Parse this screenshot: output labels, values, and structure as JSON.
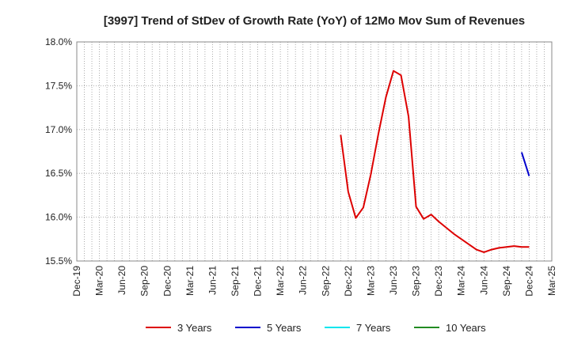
{
  "chart_data": {
    "type": "line",
    "title": "[3997]  Trend of StDev of Growth Rate (YoY) of 12Mo Mov Sum of Revenues",
    "xlabel": "",
    "ylabel": "",
    "x_ticks": [
      "Dec-19",
      "Mar-20",
      "Jun-20",
      "Sep-20",
      "Dec-20",
      "Mar-21",
      "Jun-21",
      "Sep-21",
      "Dec-21",
      "Mar-22",
      "Jun-22",
      "Sep-22",
      "Dec-22",
      "Mar-23",
      "Jun-23",
      "Sep-23",
      "Dec-23",
      "Mar-24",
      "Jun-24",
      "Sep-24",
      "Dec-24",
      "Mar-25"
    ],
    "y_ticks": [
      "15.5%",
      "16.0%",
      "16.5%",
      "17.0%",
      "17.5%",
      "18.0%"
    ],
    "y_tick_values": [
      15.5,
      16.0,
      16.5,
      17.0,
      17.5,
      18.0
    ],
    "ylim": [
      15.5,
      18.0
    ],
    "x_months_range": [
      0,
      63
    ],
    "grid": true,
    "legend_position": "bottom",
    "series": [
      {
        "name": "3 Years",
        "color": "#dd0000",
        "x_month_index": [
          35,
          36,
          37,
          38,
          39,
          40,
          41,
          42,
          43,
          44,
          45,
          46,
          47,
          48,
          49,
          50,
          51,
          52,
          53,
          54,
          55,
          56,
          57,
          58,
          59,
          60
        ],
        "values": [
          16.94,
          16.29,
          15.99,
          16.11,
          16.49,
          16.95,
          17.37,
          17.67,
          17.62,
          17.15,
          16.12,
          15.98,
          16.03,
          15.95,
          15.88,
          15.81,
          15.75,
          15.69,
          15.63,
          15.6,
          15.63,
          15.65,
          15.66,
          15.67,
          15.66,
          15.66
        ]
      },
      {
        "name": "5 Years",
        "color": "#0000cc",
        "x_month_index": [
          59,
          60
        ],
        "values": [
          16.74,
          16.47
        ]
      },
      {
        "name": "7 Years",
        "color": "#00e5ee",
        "x_month_index": [],
        "values": []
      },
      {
        "name": "10 Years",
        "color": "#228b22",
        "x_month_index": [],
        "values": []
      }
    ]
  }
}
